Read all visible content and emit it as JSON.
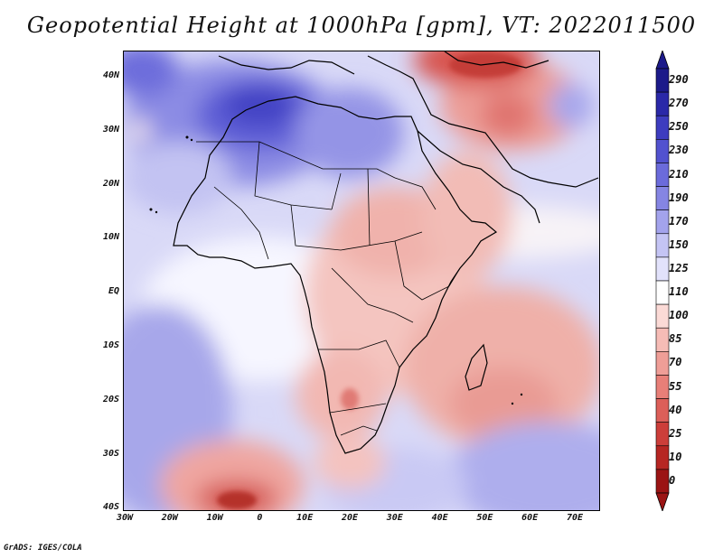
{
  "title": "Geopotential Height at 1000hPa [gpm], VT: 2022011500",
  "footer": "GrADS: IGES/COLA",
  "map": {
    "lat_labels": [
      "40N",
      "30N",
      "20N",
      "10N",
      "EQ",
      "10S",
      "20S",
      "30S",
      "40S"
    ],
    "lon_labels": [
      "30W",
      "20W",
      "10W",
      "0",
      "10E",
      "20E",
      "30E",
      "40E",
      "50E",
      "60E",
      "70E"
    ]
  },
  "colorbar": {
    "labels": [
      "290",
      "270",
      "250",
      "230",
      "210",
      "190",
      "170",
      "150",
      "125",
      "110",
      "100",
      "85",
      "70",
      "55",
      "40",
      "25",
      "10",
      "0"
    ],
    "colors": {
      "c290": "#1c1a8a",
      "c270": "#2a28a8",
      "c250": "#3d3cbf",
      "c230": "#5252cf",
      "c210": "#6b6bdb",
      "c190": "#8585e3",
      "c170": "#a3a3ec",
      "c150": "#c4c4f4",
      "c125": "#e2e2fb",
      "c110": "#ffffff",
      "c100": "#fbdad6",
      "c85": "#f6bcb6",
      "c70": "#ef9e97",
      "c55": "#e87f78",
      "c40": "#dc5f59",
      "c25": "#cc3e3a",
      "c10": "#b62623",
      "c0": "#9b1414"
    }
  }
}
